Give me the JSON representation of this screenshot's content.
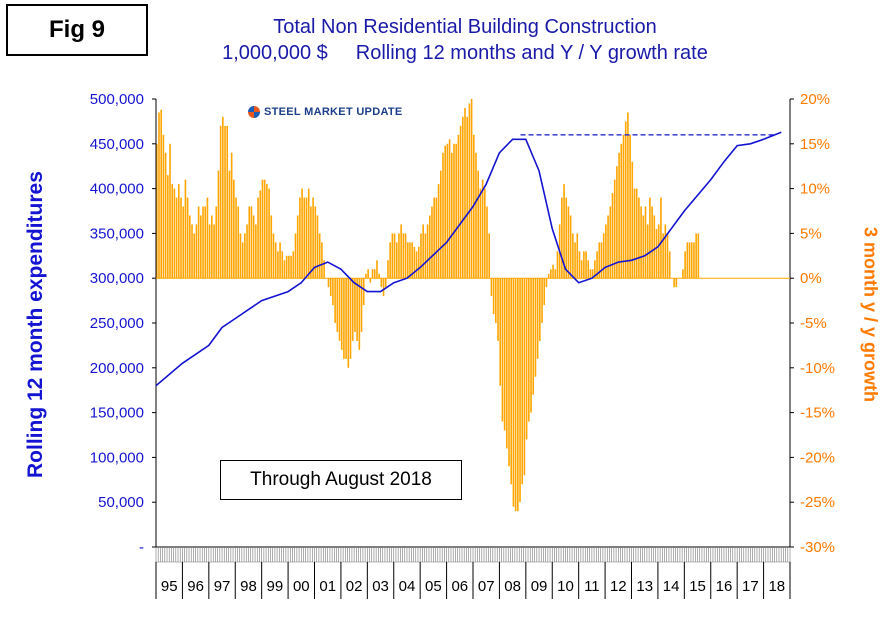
{
  "figure": {
    "label": "Fig 9",
    "title_line1": "Total Non Residential Building Construction",
    "title_unit": "1,000,000 $",
    "title_line2": "Rolling 12 months and Y / Y growth rate",
    "annotation": "Through August 2018",
    "logo_text": "STEEL MARKET UPDATE"
  },
  "chart_data": {
    "type": "bar",
    "secondary_type": "line",
    "xlabel": "",
    "ylabel_left": "Rolling 12 month expenditures",
    "ylabel_right": "3 month y / y growth",
    "ylim_left": [
      0,
      500000
    ],
    "ylim_right": [
      -30,
      20
    ],
    "yticks_left": [
      "-",
      "50,000",
      "100,000",
      "150,000",
      "200,000",
      "250,000",
      "300,000",
      "350,000",
      "400,000",
      "450,000",
      "500,000"
    ],
    "yticks_right": [
      "-30%",
      "-25%",
      "-20%",
      "-15%",
      "-10%",
      "-5%",
      "0%",
      "5%",
      "10%",
      "15%",
      "20%"
    ],
    "categories": [
      "95",
      "96",
      "97",
      "98",
      "99",
      "00",
      "01",
      "02",
      "03",
      "04",
      "05",
      "06",
      "07",
      "08",
      "09",
      "10",
      "11",
      "12",
      "13",
      "14",
      "15",
      "16",
      "17",
      "18"
    ],
    "bar_color": "#ffa500",
    "line_color": "#1414d2",
    "reference_line_color": "#1414d2",
    "series": [
      {
        "kind": "bar",
        "axis": "right",
        "unit": "%",
        "x_start_year": 1995,
        "monthly_values": [
          15,
          18.5,
          18.8,
          16,
          14,
          11.5,
          15,
          10.5,
          10,
          9,
          10.5,
          9,
          8,
          11,
          9,
          7,
          6,
          5,
          6,
          8,
          7,
          8,
          8,
          9,
          6,
          7,
          6,
          8,
          12,
          17,
          18,
          17,
          17,
          12,
          14,
          11,
          9,
          8,
          5,
          4,
          5,
          6,
          8,
          8,
          7,
          6,
          9,
          9.8,
          11,
          11,
          10.5,
          10,
          7,
          5,
          4,
          3,
          4,
          3,
          2,
          2.5,
          2.5,
          2.5,
          3,
          5,
          7,
          9,
          10,
          9,
          9,
          10,
          8,
          9,
          8,
          7,
          5,
          4,
          2,
          0,
          -1,
          -2,
          -3,
          -5,
          -6,
          -7,
          -8,
          -9,
          -9,
          -10,
          -9,
          -7,
          -6,
          -7,
          -8,
          -6,
          -3,
          0.5,
          1,
          -0.5,
          1,
          1,
          2,
          0.5,
          -1,
          -2,
          -1,
          2,
          4,
          5,
          5,
          4,
          5,
          6,
          5,
          5,
          4,
          4,
          4,
          3.5,
          3,
          3.5,
          5,
          6,
          5,
          6,
          7,
          8,
          9,
          9,
          10.5,
          12,
          14,
          14.8,
          15,
          15.5,
          14,
          15,
          15,
          16,
          17,
          18,
          19,
          18,
          19.5,
          20,
          16,
          14,
          12,
          10,
          11,
          10,
          8,
          5,
          -2,
          -4,
          -5,
          -7,
          -12,
          -16,
          -17,
          -19,
          -21,
          -23,
          -25.5,
          -26,
          -26,
          -25,
          -23,
          -22,
          -18,
          -16,
          -15,
          -13,
          -11,
          -9,
          -7,
          -5,
          -3,
          -1,
          0.5,
          1,
          1.5,
          1,
          3,
          6,
          9,
          10.5,
          9,
          8,
          7,
          5,
          4,
          5,
          3,
          2,
          3,
          3,
          2,
          1,
          1,
          2,
          3,
          4,
          4,
          5,
          6,
          7,
          8,
          9.5,
          11,
          12.5,
          14,
          15,
          16,
          17.5,
          18.5,
          16,
          13,
          10,
          10,
          9,
          8,
          7,
          8,
          6,
          9,
          8,
          7,
          5.5,
          6,
          9,
          5,
          6,
          5,
          3,
          0,
          -1,
          -1,
          0,
          0,
          1,
          3,
          4,
          4,
          4,
          4,
          5,
          5
        ]
      },
      {
        "kind": "line",
        "axis": "left",
        "unit": "1,000,000 $",
        "x": [
          1995.0,
          1996.0,
          1997.0,
          1997.5,
          1998.0,
          1999.0,
          2000.0,
          2000.5,
          2001.0,
          2001.5,
          2002.0,
          2002.5,
          2003.0,
          2003.5,
          2004.0,
          2004.5,
          2005.0,
          2006.0,
          2007.0,
          2007.5,
          2008.0,
          2008.5,
          2009.0,
          2009.5,
          2010.0,
          2010.5,
          2011.0,
          2011.5,
          2012.0,
          2012.5,
          2013.0,
          2013.5,
          2014.0,
          2015.0,
          2016.0,
          2016.5,
          2017.0,
          2017.5,
          2018.0,
          2018.67
        ],
        "values": [
          180000,
          205000,
          225000,
          245000,
          255000,
          275000,
          285000,
          295000,
          312000,
          318000,
          310000,
          295000,
          285000,
          285000,
          295000,
          300000,
          312000,
          340000,
          380000,
          405000,
          440000,
          455000,
          455000,
          420000,
          355000,
          310000,
          295000,
          300000,
          312000,
          318000,
          320000,
          325000,
          335000,
          375000,
          410000,
          430000,
          448000,
          450000,
          455000,
          463000
        ]
      }
    ],
    "reference_line": {
      "x_start": 2008.8,
      "x_end": 2018.4,
      "value": 460000,
      "style": "dashed"
    },
    "grid": false,
    "legend": "none"
  }
}
